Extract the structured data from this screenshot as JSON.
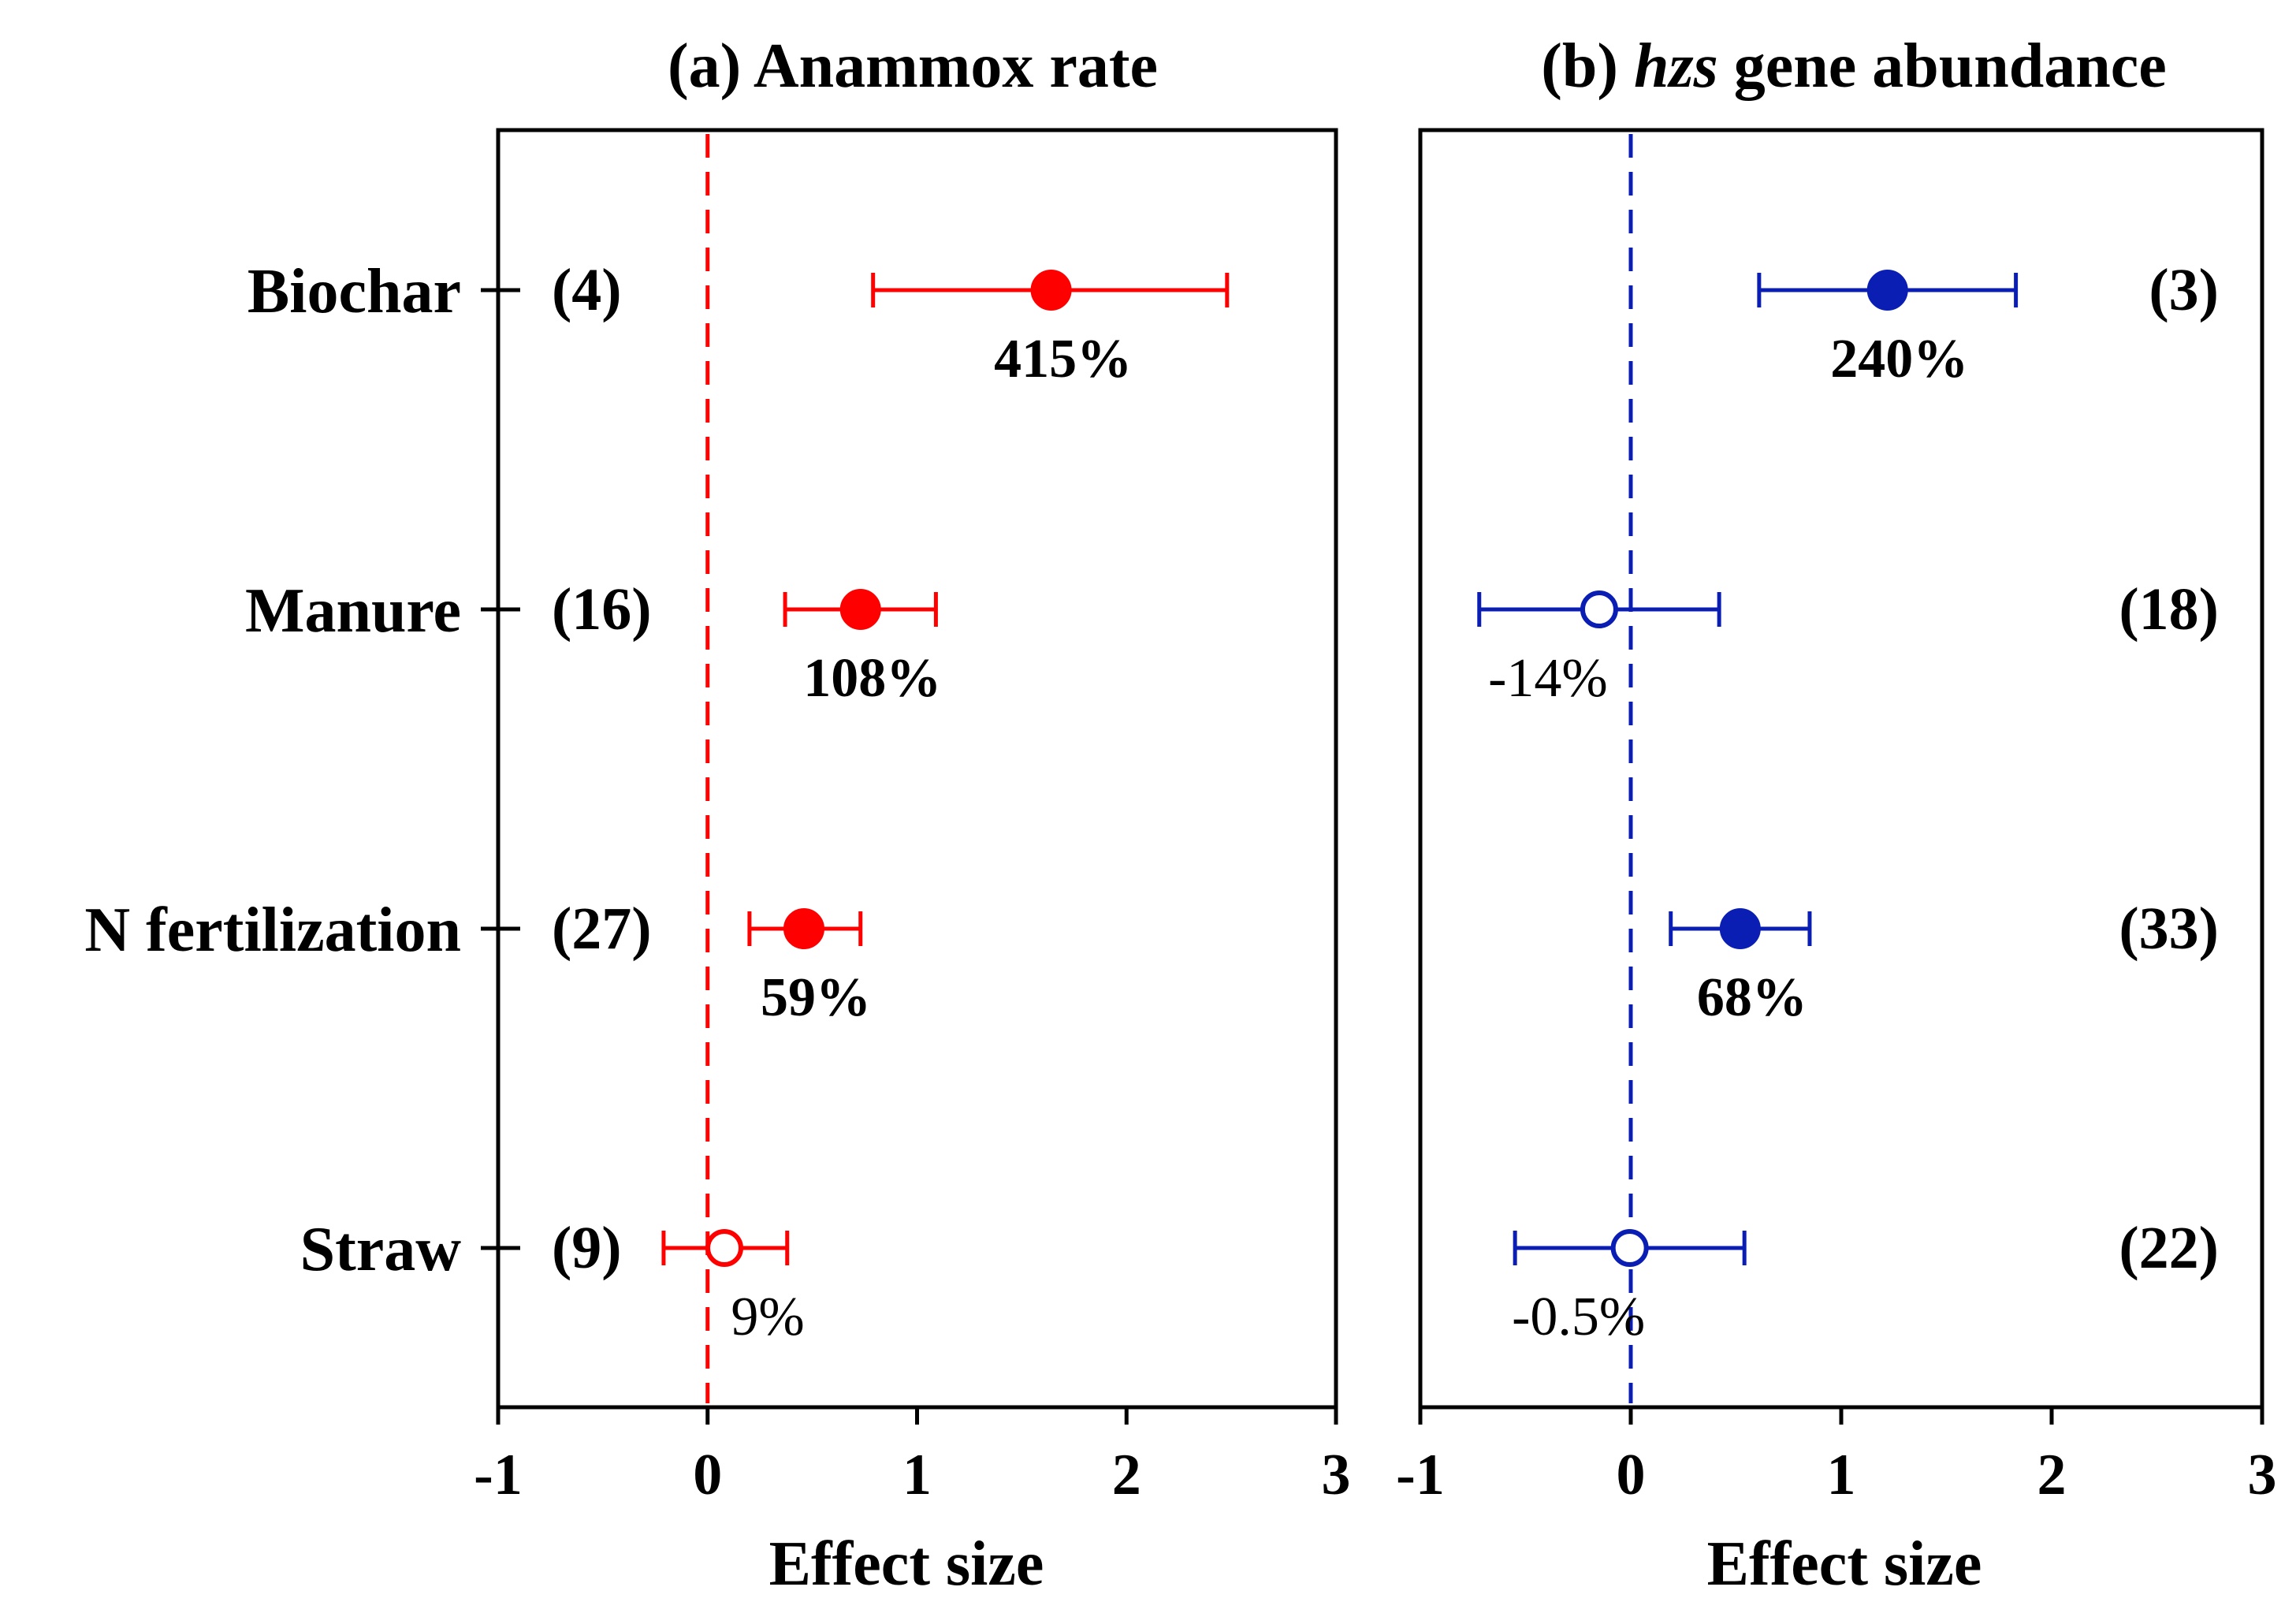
{
  "chart_data": [
    {
      "type": "forest",
      "panel": "a",
      "title": "(a) Anammox rate",
      "title_prefix": "(a)",
      "title_main": "Anammox rate",
      "xlabel": "Effect size",
      "xlim": [
        -1,
        3
      ],
      "xticks": [
        "-1",
        "0",
        "1",
        "2",
        "3"
      ],
      "color": "#ff0000",
      "counts_side": "left",
      "rows": [
        {
          "category": "Biochar",
          "n": "(4)",
          "mean": 1.64,
          "ci": [
            0.79,
            2.48
          ],
          "label": "415%",
          "significant": true
        },
        {
          "category": "Manure",
          "n": "(16)",
          "mean": 0.73,
          "ci": [
            0.37,
            1.09
          ],
          "label": "108%",
          "significant": true
        },
        {
          "category": "N fertilization",
          "n": "(27)",
          "mean": 0.46,
          "ci": [
            0.2,
            0.73
          ],
          "label": "59%",
          "significant": true
        },
        {
          "category": "Straw",
          "n": "(9)",
          "mean": 0.08,
          "ci": [
            -0.21,
            0.38
          ],
          "label": "9%",
          "significant": false
        }
      ]
    },
    {
      "type": "forest",
      "panel": "b",
      "title": "(b) hzs gene abundance",
      "title_prefix": "(b)",
      "title_gene": "hzs",
      "title_main": "gene abundance",
      "xlabel": "Effect size",
      "xlim": [
        -1,
        3
      ],
      "xticks": [
        "-1",
        "0",
        "1",
        "2",
        "3"
      ],
      "color": "#0a1eb4",
      "counts_side": "right",
      "rows": [
        {
          "category": "Biochar",
          "n": "(3)",
          "mean": 1.22,
          "ci": [
            0.61,
            1.83
          ],
          "label": "240%",
          "significant": true
        },
        {
          "category": "Manure",
          "n": "(18)",
          "mean": -0.15,
          "ci": [
            -0.72,
            0.42
          ],
          "label": "-14%",
          "significant": false
        },
        {
          "category": "N fertilization",
          "n": "(33)",
          "mean": 0.52,
          "ci": [
            0.19,
            0.85
          ],
          "label": "68%",
          "significant": true
        },
        {
          "category": "Straw",
          "n": "(22)",
          "mean": -0.005,
          "ci": [
            -0.55,
            0.54
          ],
          "label": "-0.5%",
          "significant": false
        }
      ]
    }
  ]
}
